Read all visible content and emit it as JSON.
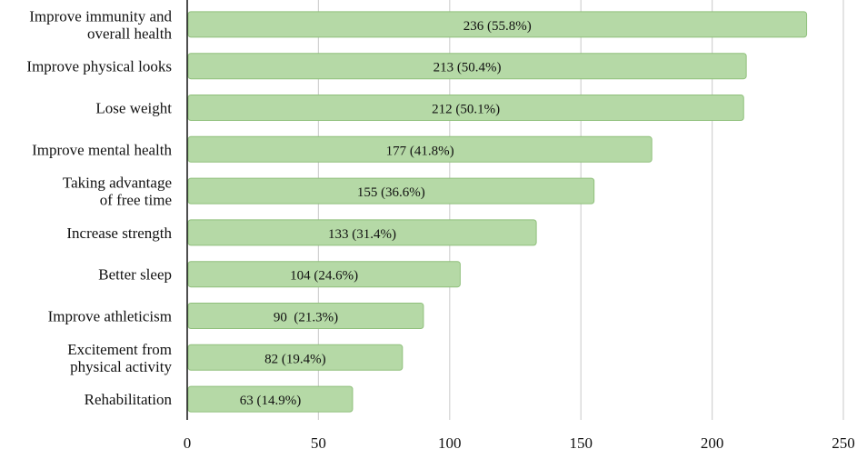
{
  "chart_data": {
    "type": "bar",
    "orientation": "horizontal",
    "categories": [
      "Improve immunity and overall health",
      "Improve physical looks",
      "Lose weight",
      "Improve mental health",
      "Taking advantage of free time",
      "Increase strength",
      "Better sleep",
      "Improve athleticism",
      "Excitement from physical activity",
      "Rehabilitation"
    ],
    "category_lines": [
      [
        "Improve immunity and",
        "overall health"
      ],
      [
        "Improve physical looks"
      ],
      [
        "Lose weight"
      ],
      [
        "Improve mental health"
      ],
      [
        "Taking advantage",
        "of free time"
      ],
      [
        "Increase strength"
      ],
      [
        "Better sleep"
      ],
      [
        "Improve athleticism"
      ],
      [
        "Excitement from",
        "physical activity"
      ],
      [
        "Rehabilitation"
      ]
    ],
    "values": [
      236,
      213,
      212,
      177,
      155,
      133,
      104,
      90,
      82,
      63
    ],
    "data_labels": [
      "236 (55.8%)",
      "213 (50.4%)",
      "212 (50.1%)",
      "177 (41.8%)",
      "155 (36.6%)",
      "133 (31.4%)",
      "104 (24.6%)",
      "90  (21.3%)",
      "82 (19.4%)",
      "63 (14.9%)"
    ],
    "x_ticks": [
      0,
      50,
      100,
      150,
      200,
      250
    ],
    "x_tick_labels": [
      "0",
      "50",
      "100",
      "150",
      "200",
      "250"
    ],
    "xlim": [
      0,
      250
    ],
    "title": "",
    "xlabel": "",
    "ylabel": "",
    "grid": "vertical",
    "legend": "none",
    "colors": {
      "bar_fill": "#b5d9a6",
      "bar_stroke": "#90c07c",
      "grid": "#d2d2d2",
      "axis": "#222222",
      "text": "#111111"
    }
  }
}
